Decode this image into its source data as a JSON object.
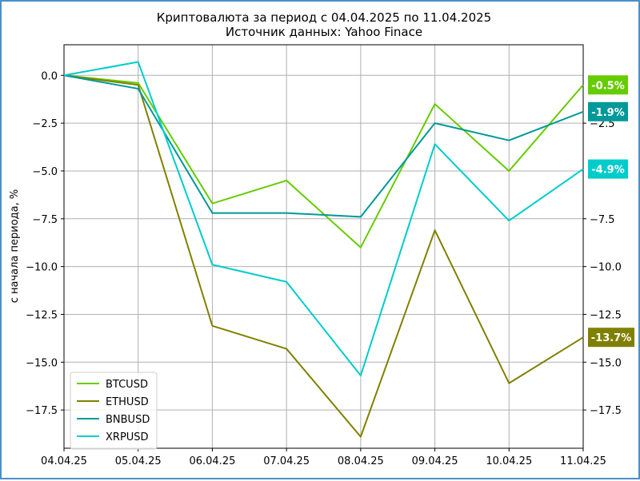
{
  "chart_data": {
    "type": "line",
    "title": "Криптовалюта за период с 04.04.2025 по 11.04.2025",
    "subtitle": "Источник данных: Yahoo Finace",
    "xlabel": "",
    "ylabel": "с начала периода, %",
    "x": [
      "04.04.25",
      "05.04.25",
      "06.04.25",
      "07.04.25",
      "08.04.25",
      "09.04.25",
      "10.04.25",
      "11.04.25"
    ],
    "ylim": [
      -19.5,
      1.6
    ],
    "yticks": [
      "0.0",
      "−2.5",
      "−5.0",
      "−7.5",
      "−10.0",
      "−12.5",
      "−15.0",
      "−17.5"
    ],
    "ytick_values": [
      0,
      -2.5,
      -5,
      -7.5,
      -10,
      -12.5,
      -15,
      -17.5
    ],
    "right_yticks": [
      "−2.5",
      "−7.5",
      "−10.0",
      "−12.5",
      "−15.0",
      "−17.5"
    ],
    "right_ytick_values": [
      -2.5,
      -7.5,
      -10,
      -12.5,
      -15,
      -17.5
    ],
    "grid": true,
    "legend_position": "bottom-left",
    "series": [
      {
        "name": "BTCUSD",
        "color": "#66cc00",
        "values": [
          0,
          -0.4,
          -6.7,
          -5.5,
          -9.0,
          -1.5,
          -5.0,
          -0.5
        ],
        "end_label": "-0.5%"
      },
      {
        "name": "ETHUSD",
        "color": "#808000",
        "values": [
          0,
          -0.5,
          -13.1,
          -14.3,
          -18.9,
          -8.1,
          -16.1,
          -13.7
        ],
        "end_label": "-13.7%"
      },
      {
        "name": "BNBUSD",
        "color": "#009999",
        "values": [
          0,
          -0.7,
          -7.2,
          -7.2,
          -7.4,
          -2.5,
          -3.4,
          -1.9
        ],
        "end_label": "-1.9%"
      },
      {
        "name": "XRPUSD",
        "color": "#00cccc",
        "values": [
          0,
          0.7,
          -9.9,
          -10.8,
          -15.7,
          -3.6,
          -7.6,
          -4.9
        ],
        "end_label": "-4.9%"
      }
    ]
  }
}
